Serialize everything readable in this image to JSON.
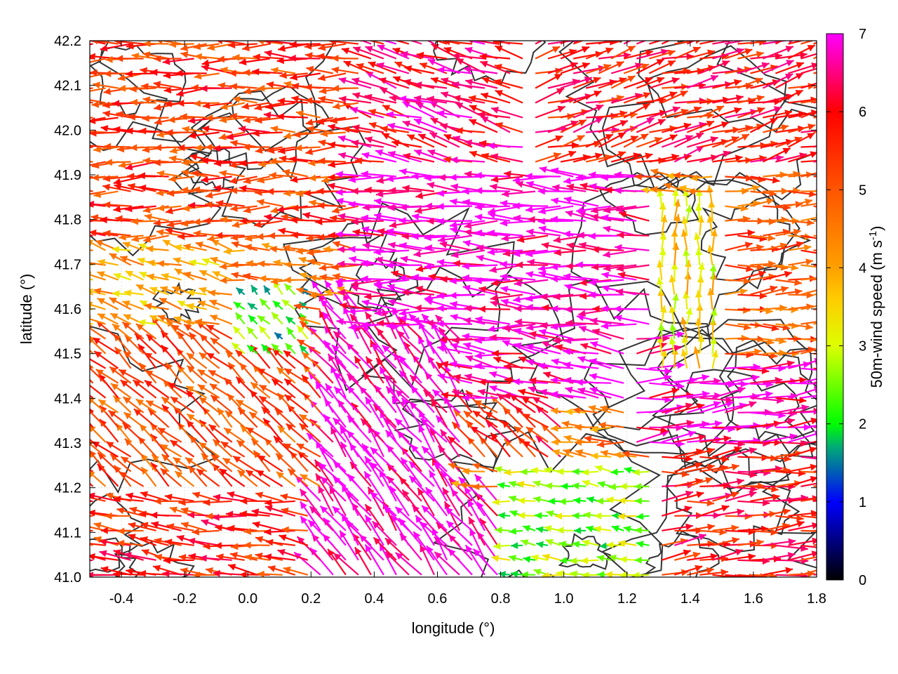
{
  "chart_data": {
    "type": "vector-field",
    "x_axis": {
      "label": "longitude (°)",
      "range": [
        -0.5,
        1.8
      ],
      "ticks": [
        -0.4,
        -0.2,
        0.0,
        0.2,
        0.4,
        0.6,
        0.8,
        1.0,
        1.2,
        1.4,
        1.6,
        1.8
      ],
      "tick_labels": [
        "-0.4",
        "-0.2",
        "0.0",
        "0.2",
        "0.4",
        "0.6",
        "0.8",
        "1.0",
        "1.2",
        "1.4",
        "1.6",
        "1.8"
      ]
    },
    "y_axis": {
      "label": "latitude (°)",
      "range": [
        41.0,
        42.2
      ],
      "ticks": [
        41.0,
        41.1,
        41.2,
        41.3,
        41.4,
        41.5,
        41.6,
        41.7,
        41.8,
        41.9,
        42.0,
        42.1,
        42.2
      ],
      "tick_labels": [
        "41.0",
        "41.1",
        "41.2",
        "41.3",
        "41.4",
        "41.5",
        "41.6",
        "41.7",
        "41.8",
        "41.9",
        "42.0",
        "42.1",
        "42.2"
      ]
    },
    "colorbar": {
      "label": "50m-wind speed (m s",
      "label_sup": "-1",
      "label_end": ")",
      "range": [
        0,
        7
      ],
      "ticks": [
        0,
        1,
        2,
        3,
        4,
        5,
        6,
        7
      ],
      "tick_labels": [
        "0",
        "1",
        "2",
        "3",
        "4",
        "5",
        "6",
        "7"
      ],
      "stops": [
        {
          "v": 0,
          "color": "#000000"
        },
        {
          "v": 1,
          "color": "#0000ff"
        },
        {
          "v": 1.7,
          "color": "#00aa77"
        },
        {
          "v": 2,
          "color": "#00ff00"
        },
        {
          "v": 3,
          "color": "#ddff00"
        },
        {
          "v": 3.6,
          "color": "#ffcc00"
        },
        {
          "v": 4,
          "color": "#ffa000"
        },
        {
          "v": 5,
          "color": "#ff5500"
        },
        {
          "v": 6,
          "color": "#ff0000"
        },
        {
          "v": 7,
          "color": "#ff00ff"
        }
      ]
    },
    "grid": true,
    "contour_color": "#333333",
    "wind_regions": [
      {
        "lon": [
          -0.5,
          0.35
        ],
        "lat": [
          41.75,
          42.2
        ],
        "u": -1,
        "v": 0.0,
        "speed": 5.4
      },
      {
        "lon": [
          0.2,
          0.9
        ],
        "lat": [
          41.9,
          42.2
        ],
        "u": -0.9,
        "v": 0.25,
        "speed": 6.3
      },
      {
        "lon": [
          0.9,
          1.8
        ],
        "lat": [
          41.9,
          42.2
        ],
        "u": 0.9,
        "v": 0.25,
        "speed": 5.8
      },
      {
        "lon": [
          0.35,
          1.3
        ],
        "lat": [
          41.55,
          41.9
        ],
        "u": -1,
        "v": 0.05,
        "speed": 6.9
      },
      {
        "lon": [
          1.3,
          1.5
        ],
        "lat": [
          41.45,
          41.85
        ],
        "u": 0.0,
        "v": 0.4,
        "speed": 3.4
      },
      {
        "lon": [
          1.5,
          1.8
        ],
        "lat": [
          41.5,
          41.9
        ],
        "u": 1,
        "v": 0.05,
        "speed": 5.0
      },
      {
        "lon": [
          -0.5,
          -0.05
        ],
        "lat": [
          41.55,
          41.75
        ],
        "u": -1,
        "v": 0.3,
        "speed": 4.0
      },
      {
        "lon": [
          -0.05,
          0.2
        ],
        "lat": [
          41.5,
          41.65
        ],
        "u": -0.5,
        "v": 0.5,
        "speed": 2.2
      },
      {
        "lon": [
          -0.5,
          0.25
        ],
        "lat": [
          41.2,
          41.55
        ],
        "u": -0.7,
        "v": 0.6,
        "speed": 5.2
      },
      {
        "lon": [
          0.25,
          0.7
        ],
        "lat": [
          41.2,
          41.6
        ],
        "u": -0.6,
        "v": 0.8,
        "speed": 6.9
      },
      {
        "lon": [
          0.7,
          1.2
        ],
        "lat": [
          41.4,
          41.55
        ],
        "u": -1,
        "v": 0.15,
        "speed": 6.8
      },
      {
        "lon": [
          0.65,
          1.0
        ],
        "lat": [
          41.25,
          41.4
        ],
        "u": -0.6,
        "v": 0.5,
        "speed": 5.6
      },
      {
        "lon": [
          1.2,
          1.8
        ],
        "lat": [
          41.3,
          41.55
        ],
        "u": 1,
        "v": 0.1,
        "speed": 6.8
      },
      {
        "lon": [
          -0.5,
          0.2
        ],
        "lat": [
          41.0,
          41.2
        ],
        "u": -1,
        "v": 0.15,
        "speed": 5.6
      },
      {
        "lon": [
          0.2,
          0.8
        ],
        "lat": [
          41.0,
          41.2
        ],
        "u": -0.6,
        "v": 0.8,
        "speed": 6.9
      },
      {
        "lon": [
          0.8,
          1.3
        ],
        "lat": [
          41.0,
          41.25
        ],
        "u": -0.8,
        "v": 0.1,
        "speed": 2.6
      },
      {
        "lon": [
          1.3,
          1.8
        ],
        "lat": [
          41.0,
          41.3
        ],
        "u": 1,
        "v": 0.1,
        "speed": 5.8
      }
    ]
  }
}
